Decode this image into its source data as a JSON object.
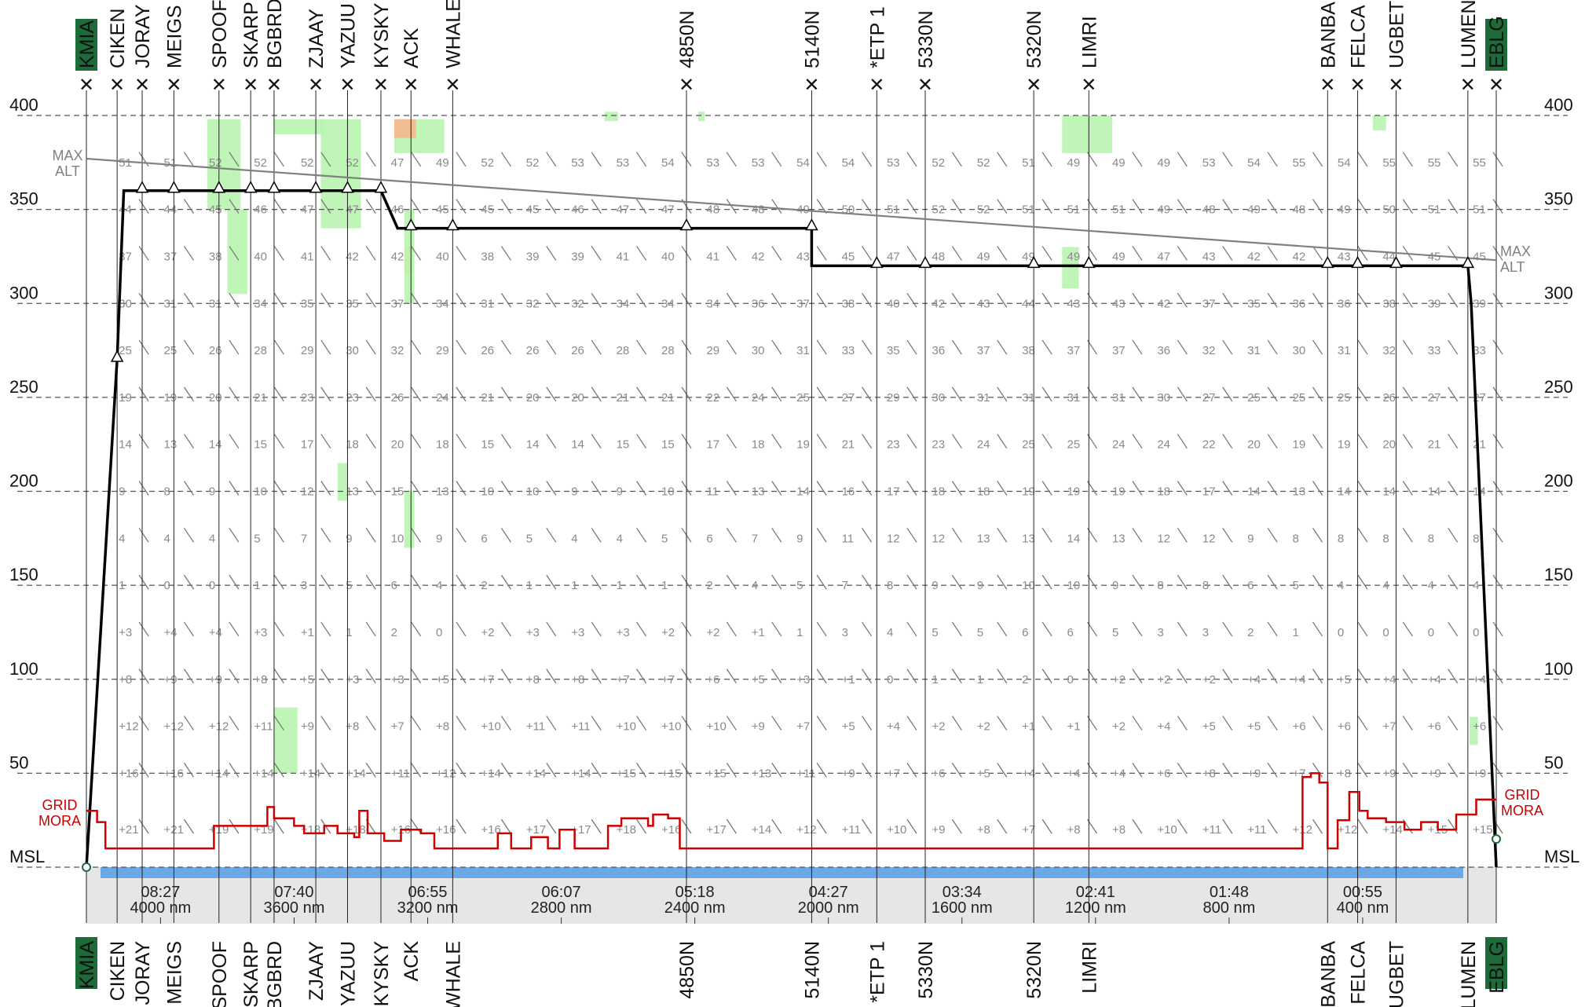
{
  "chart_data": {
    "type": "line",
    "title": "",
    "xlabel": "",
    "ylabel": "",
    "ylim": [
      0,
      400
    ],
    "yticks": [
      "MSL",
      "50",
      "100",
      "150",
      "200",
      "250",
      "300",
      "350",
      "400"
    ],
    "grid": true,
    "departure": "KMIA",
    "destination": "EBLG",
    "waypoints": [
      {
        "name": "KMIA",
        "dist_nm": 4222,
        "box": true
      },
      {
        "name": "CIKEN",
        "dist_nm": 4130
      },
      {
        "name": "JORAY",
        "dist_nm": 4055
      },
      {
        "name": "MEIGS",
        "dist_nm": 3960
      },
      {
        "name": "SPOOF",
        "dist_nm": 3825
      },
      {
        "name": "SKARP",
        "dist_nm": 3730
      },
      {
        "name": "BGBRD",
        "dist_nm": 3660
      },
      {
        "name": "ZJAAY",
        "dist_nm": 3535
      },
      {
        "name": "YAZUU",
        "dist_nm": 3440
      },
      {
        "name": "KYSKY",
        "dist_nm": 3340
      },
      {
        "name": "ACK",
        "dist_nm": 3250
      },
      {
        "name": "WHALE",
        "dist_nm": 3125
      },
      {
        "name": "4850N",
        "dist_nm": 2425
      },
      {
        "name": "5140N",
        "dist_nm": 2050
      },
      {
        "name": "*ETP 1",
        "dist_nm": 1855
      },
      {
        "name": "5330N",
        "dist_nm": 1710
      },
      {
        "name": "5320N",
        "dist_nm": 1385
      },
      {
        "name": "LIMRI",
        "dist_nm": 1220
      },
      {
        "name": "BANBA",
        "dist_nm": 505
      },
      {
        "name": "FELCA",
        "dist_nm": 415
      },
      {
        "name": "UGBET",
        "dist_nm": 300
      },
      {
        "name": "LUMEN",
        "dist_nm": 85
      },
      {
        "name": "EBLG",
        "dist_nm": 0,
        "box": true
      }
    ],
    "series": [
      {
        "name": "",
        "color": "#000000",
        "points": [
          [
            4222,
            0
          ],
          [
            4130,
            270
          ],
          [
            4110,
            360
          ],
          [
            3340,
            360
          ],
          [
            3290,
            340
          ],
          [
            2050,
            340
          ],
          [
            2050,
            320
          ],
          [
            85,
            320
          ],
          [
            75,
            300
          ],
          [
            0,
            0
          ]
        ]
      },
      {
        "name": "MAX ALT",
        "color": "#808080",
        "points": [
          [
            4222,
            377
          ],
          [
            0,
            323
          ]
        ]
      },
      {
        "name": "GRID MORA",
        "color": "#cc0000",
        "points": [
          [
            4222,
            30
          ],
          [
            4190,
            30
          ],
          [
            4190,
            24
          ],
          [
            4165,
            24
          ],
          [
            4165,
            10
          ],
          [
            3840,
            10
          ],
          [
            3840,
            22
          ],
          [
            3680,
            22
          ],
          [
            3680,
            32
          ],
          [
            3660,
            32
          ],
          [
            3660,
            26
          ],
          [
            3600,
            26
          ],
          [
            3600,
            22
          ],
          [
            3570,
            22
          ],
          [
            3570,
            18
          ],
          [
            3510,
            18
          ],
          [
            3510,
            22
          ],
          [
            3470,
            22
          ],
          [
            3470,
            18
          ],
          [
            3420,
            18
          ],
          [
            3420,
            16
          ],
          [
            3405,
            16
          ],
          [
            3405,
            30
          ],
          [
            3380,
            30
          ],
          [
            3380,
            18
          ],
          [
            3330,
            18
          ],
          [
            3330,
            14
          ],
          [
            3280,
            14
          ],
          [
            3280,
            20
          ],
          [
            3220,
            20
          ],
          [
            3220,
            18
          ],
          [
            3180,
            18
          ],
          [
            3180,
            10
          ],
          [
            2990,
            10
          ],
          [
            2990,
            18
          ],
          [
            2950,
            18
          ],
          [
            2950,
            10
          ],
          [
            2890,
            10
          ],
          [
            2890,
            16
          ],
          [
            2840,
            16
          ],
          [
            2840,
            10
          ],
          [
            2805,
            10
          ],
          [
            2805,
            20
          ],
          [
            2760,
            20
          ],
          [
            2760,
            10
          ],
          [
            2660,
            10
          ],
          [
            2660,
            22
          ],
          [
            2620,
            22
          ],
          [
            2620,
            26
          ],
          [
            2540,
            26
          ],
          [
            2540,
            22
          ],
          [
            2525,
            22
          ],
          [
            2525,
            28
          ],
          [
            2480,
            28
          ],
          [
            2480,
            26
          ],
          [
            2445,
            26
          ],
          [
            2445,
            10
          ],
          [
            580,
            10
          ],
          [
            580,
            48
          ],
          [
            555,
            48
          ],
          [
            555,
            50
          ],
          [
            530,
            50
          ],
          [
            530,
            45
          ],
          [
            505,
            45
          ],
          [
            505,
            10
          ],
          [
            475,
            10
          ],
          [
            475,
            25
          ],
          [
            440,
            25
          ],
          [
            440,
            40
          ],
          [
            410,
            40
          ],
          [
            410,
            30
          ],
          [
            385,
            30
          ],
          [
            385,
            26
          ],
          [
            330,
            26
          ],
          [
            330,
            24
          ],
          [
            275,
            24
          ],
          [
            275,
            20
          ],
          [
            225,
            20
          ],
          [
            225,
            24
          ],
          [
            175,
            24
          ],
          [
            175,
            20
          ],
          [
            120,
            20
          ],
          [
            120,
            28
          ],
          [
            60,
            28
          ],
          [
            60,
            36
          ],
          [
            0,
            36
          ]
        ]
      }
    ],
    "time_labels": [
      {
        "time": "08:27",
        "dist": "4000 nm",
        "dist_nm": 4000
      },
      {
        "time": "07:40",
        "dist": "3600 nm",
        "dist_nm": 3600
      },
      {
        "time": "06:55",
        "dist": "3200 nm",
        "dist_nm": 3200
      },
      {
        "time": "06:07",
        "dist": "2800 nm",
        "dist_nm": 2800
      },
      {
        "time": "05:18",
        "dist": "2400 nm",
        "dist_nm": 2400
      },
      {
        "time": "04:27",
        "dist": "2000 nm",
        "dist_nm": 2000
      },
      {
        "time": "03:34",
        "dist": "1600 nm",
        "dist_nm": 1600
      },
      {
        "time": "02:41",
        "dist": "1200 nm",
        "dist_nm": 1200
      },
      {
        "time": "01:48",
        "dist": "800 nm",
        "dist_nm": 800
      },
      {
        "time": "00:55",
        "dist": "400 nm",
        "dist_nm": 400
      }
    ],
    "temperature_columns_nm": [
      4130,
      3995,
      3860,
      3725,
      3585,
      3450,
      3315,
      3180,
      3045,
      2910,
      2775,
      2640,
      2505,
      2370,
      2235,
      2100,
      1965,
      1830,
      1695,
      1560,
      1425,
      1290,
      1155,
      1020,
      885,
      750,
      615,
      480,
      345,
      210,
      75
    ],
    "temperature_levels": [
      20,
      50,
      75,
      100,
      125,
      150,
      175,
      200,
      225,
      250,
      275,
      300,
      325,
      350,
      375
    ],
    "temperature_rows": [
      [
        "+21",
        "+21",
        "+19",
        "+19",
        "+18",
        "+18",
        "+16",
        "+16",
        "+16",
        "+17",
        "+17",
        "+18",
        "+16",
        "+17",
        "+14",
        "+12",
        "+11",
        "+10",
        "+9",
        "+8",
        "+7",
        "+8",
        "+8",
        "+10",
        "+11",
        "+11",
        "+12",
        "+12",
        "+14",
        "+15",
        "+15"
      ],
      [
        "+16",
        "+16",
        "+14",
        "+14",
        "+14",
        "+14",
        "+11",
        "+12",
        "+14",
        "+14",
        "+14",
        "+15",
        "+15",
        "+15",
        "+13",
        "+11",
        "+9",
        "+7",
        "+6",
        "+5",
        "+4",
        "+4",
        "+4",
        "+6",
        "+8",
        "+9",
        "+7",
        "+8",
        "+9",
        "+9",
        "+9"
      ],
      [
        "+12",
        "+12",
        "+12",
        "+11",
        "+9",
        "+8",
        "+7",
        "+8",
        "+10",
        "+11",
        "+11",
        "+10",
        "+10",
        "+10",
        "+9",
        "+7",
        "+5",
        "+4",
        "+2",
        "+2",
        "+1",
        "+1",
        "+2",
        "+4",
        "+5",
        "+5",
        "+6",
        "+6",
        "+7",
        "+6",
        "+6"
      ],
      [
        "+8",
        "+9",
        "+9",
        "+8",
        "+5",
        "+3",
        "+3",
        "+5",
        "+7",
        "+8",
        "+8",
        "+7",
        "+7",
        "+6",
        "+5",
        "+3",
        "+1",
        "0",
        "1",
        "1",
        "2",
        "0",
        "+2",
        "+2",
        "+2",
        "+4",
        "+4",
        "+5",
        "+4",
        "+4",
        "+4"
      ],
      [
        "+3",
        "+4",
        "+4",
        "+3",
        "+1",
        "1",
        "2",
        "0",
        "+2",
        "+3",
        "+3",
        "+3",
        "+2",
        "+2",
        "+1",
        "1",
        "3",
        "4",
        "5",
        "5",
        "6",
        "6",
        "5",
        "3",
        "3",
        "2",
        "1",
        "0",
        "0",
        "0",
        "0"
      ],
      [
        "1",
        "0",
        "0",
        "1",
        "3",
        "5",
        "6",
        "4",
        "2",
        "1",
        "1",
        "1",
        "1",
        "2",
        "4",
        "5",
        "7",
        "8",
        "9",
        "9",
        "10",
        "10",
        "9",
        "8",
        "8",
        "6",
        "5",
        "4",
        "4",
        "4",
        "4"
      ],
      [
        "4",
        "4",
        "4",
        "5",
        "7",
        "9",
        "10",
        "9",
        "6",
        "5",
        "4",
        "4",
        "5",
        "6",
        "7",
        "9",
        "11",
        "12",
        "12",
        "13",
        "13",
        "14",
        "13",
        "12",
        "12",
        "9",
        "8",
        "8",
        "8",
        "8",
        "8"
      ],
      [
        "9",
        "8",
        "9",
        "10",
        "12",
        "13",
        "15",
        "13",
        "10",
        "10",
        "9",
        "9",
        "10",
        "11",
        "13",
        "14",
        "16",
        "17",
        "18",
        "18",
        "19",
        "19",
        "19",
        "18",
        "17",
        "14",
        "13",
        "14",
        "14",
        "14",
        "14"
      ],
      [
        "14",
        "13",
        "14",
        "15",
        "17",
        "18",
        "20",
        "18",
        "15",
        "14",
        "14",
        "15",
        "15",
        "17",
        "18",
        "19",
        "21",
        "23",
        "23",
        "24",
        "25",
        "25",
        "24",
        "24",
        "22",
        "20",
        "19",
        "19",
        "20",
        "21",
        "21"
      ],
      [
        "19",
        "19",
        "20",
        "21",
        "23",
        "23",
        "26",
        "24",
        "21",
        "20",
        "20",
        "21",
        "21",
        "22",
        "24",
        "25",
        "27",
        "29",
        "30",
        "31",
        "31",
        "31",
        "31",
        "30",
        "27",
        "25",
        "25",
        "25",
        "26",
        "27",
        "27"
      ],
      [
        "25",
        "25",
        "26",
        "28",
        "29",
        "30",
        "32",
        "29",
        "26",
        "26",
        "26",
        "28",
        "28",
        "29",
        "30",
        "31",
        "33",
        "35",
        "36",
        "37",
        "38",
        "37",
        "37",
        "36",
        "32",
        "31",
        "30",
        "31",
        "32",
        "33",
        "33"
      ],
      [
        "30",
        "31",
        "31",
        "34",
        "35",
        "35",
        "37",
        "34",
        "31",
        "32",
        "32",
        "34",
        "34",
        "34",
        "36",
        "37",
        "38",
        "40",
        "42",
        "43",
        "44",
        "43",
        "43",
        "42",
        "37",
        "35",
        "36",
        "36",
        "38",
        "39",
        "39"
      ],
      [
        "37",
        "37",
        "38",
        "40",
        "41",
        "42",
        "42",
        "40",
        "38",
        "39",
        "39",
        "41",
        "40",
        "41",
        "42",
        "43",
        "45",
        "47",
        "48",
        "49",
        "49",
        "49",
        "49",
        "47",
        "43",
        "42",
        "42",
        "43",
        "44",
        "45",
        "45"
      ],
      [
        "44",
        "44",
        "45",
        "46",
        "47",
        "47",
        "46",
        "45",
        "45",
        "45",
        "46",
        "47",
        "47",
        "48",
        "48",
        "49",
        "50",
        "51",
        "52",
        "52",
        "51",
        "51",
        "51",
        "49",
        "48",
        "49",
        "48",
        "49",
        "50",
        "51",
        "51"
      ],
      [
        "51",
        "51",
        "52",
        "52",
        "52",
        "52",
        "47",
        "49",
        "52",
        "52",
        "53",
        "53",
        "54",
        "53",
        "53",
        "54",
        "54",
        "53",
        "52",
        "52",
        "51",
        "49",
        "49",
        "49",
        "53",
        "54",
        "55",
        "54",
        "55",
        "55",
        "55"
      ]
    ]
  },
  "labels": {
    "max_alt_line1": "MAX",
    "max_alt_line2": "ALT",
    "mora_line1": "GRID",
    "mora_line2": "MORA"
  },
  "colors": {
    "route": "#000000",
    "max_alt": "#808080",
    "mora": "#cc0000",
    "grid": "#555555",
    "temperature_text": "#8a8a8a",
    "wind_barb": "#777777",
    "turbulence_light": "#b8f5b0",
    "turbulence_moderate": "#f5b88e",
    "sea": "#6aa8e8",
    "terrain_band": "#e6e6e6",
    "airport_box": "#1e6b3a"
  }
}
